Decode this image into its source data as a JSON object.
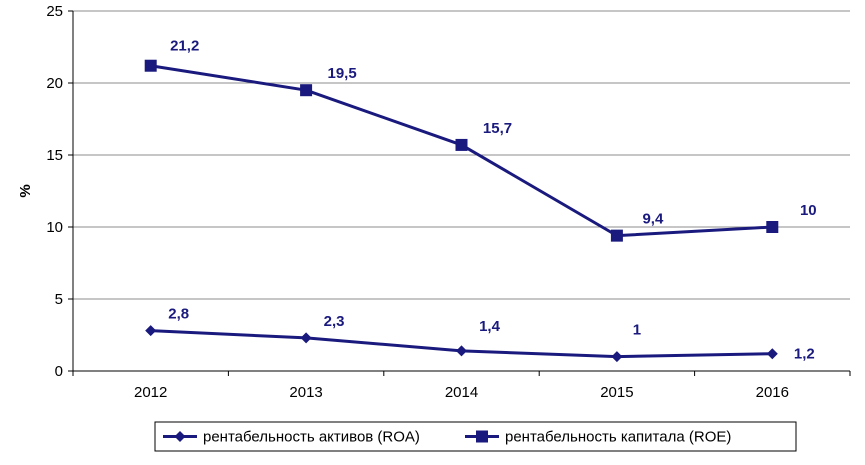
{
  "chart_data": {
    "type": "line",
    "categories": [
      "2012",
      "2013",
      "2014",
      "2015",
      "2016"
    ],
    "ylabel": "%",
    "ylim": [
      0,
      25
    ],
    "yticks": [
      "0",
      "5",
      "10",
      "15",
      "20",
      "25"
    ],
    "grid": true,
    "legend_position": "bottom",
    "series": [
      {
        "name": "рентабельность активов (ROA)",
        "values": [
          2.8,
          2.3,
          1.4,
          1.0,
          1.2
        ],
        "labels": [
          "2,8",
          "2,3",
          "1,4",
          "1",
          "1,2"
        ],
        "color": "#1a1a7e",
        "marker": "diamond"
      },
      {
        "name": "рентабельность капитала (ROE)",
        "values": [
          21.2,
          19.5,
          15.7,
          9.4,
          10.0
        ],
        "labels": [
          "21,2",
          "19,5",
          "15,7",
          "9,4",
          "10"
        ],
        "color": "#1a1a7e",
        "marker": "square"
      }
    ]
  }
}
